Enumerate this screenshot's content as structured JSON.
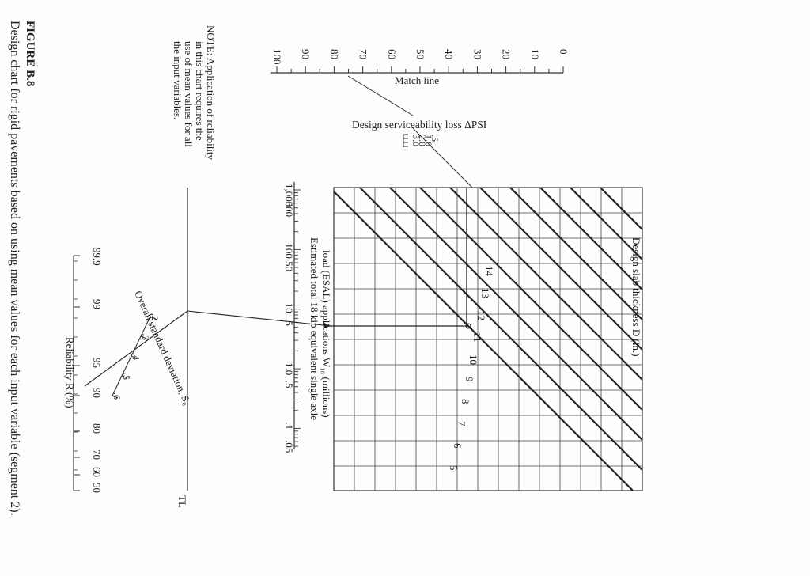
{
  "figure": {
    "label": "FIGURE  B.8",
    "caption": "Design chart for rigid pavements based on using mean values for each input variable (segment 2).",
    "note": [
      "NOTE: Application of reliability",
      "in this chart requires the",
      "use of mean values for all",
      "the input variables."
    ]
  },
  "match_line": {
    "label": "Match line",
    "ticks": [
      "0",
      "10",
      "20",
      "30",
      "40",
      "50",
      "60",
      "70",
      "80",
      "90",
      "100"
    ]
  },
  "serviceability": {
    "label": "Design serviceability loss ΔPSI",
    "values": [
      ".5",
      "1.0",
      "2.0",
      "3.0"
    ]
  },
  "slab": {
    "label": "Design slab thickness D (in.)",
    "values": [
      "14",
      "13",
      "12",
      "11",
      "10",
      "9",
      "8",
      "7",
      "6",
      "5"
    ]
  },
  "esal": {
    "label_line1": "Estimated total 18 kip equivalent single axle",
    "label_line2": "load (ESAL) applications W₁₈ (millions)",
    "ticks": [
      "1,000",
      "500",
      "100",
      "50",
      "10",
      "5",
      "1.0",
      ".5",
      ".1",
      ".05"
    ]
  },
  "turning_line": {
    "label": "TL"
  },
  "std_dev": {
    "label": "Overall standard deviation, S₀",
    "ticks": [
      ".2",
      ".3",
      ".4",
      ".5",
      ".6"
    ]
  },
  "reliability": {
    "label": "Reliability R (%)",
    "ticks": [
      "99.9",
      "99",
      "95",
      "90",
      "80",
      "70",
      "60",
      "50"
    ]
  }
}
